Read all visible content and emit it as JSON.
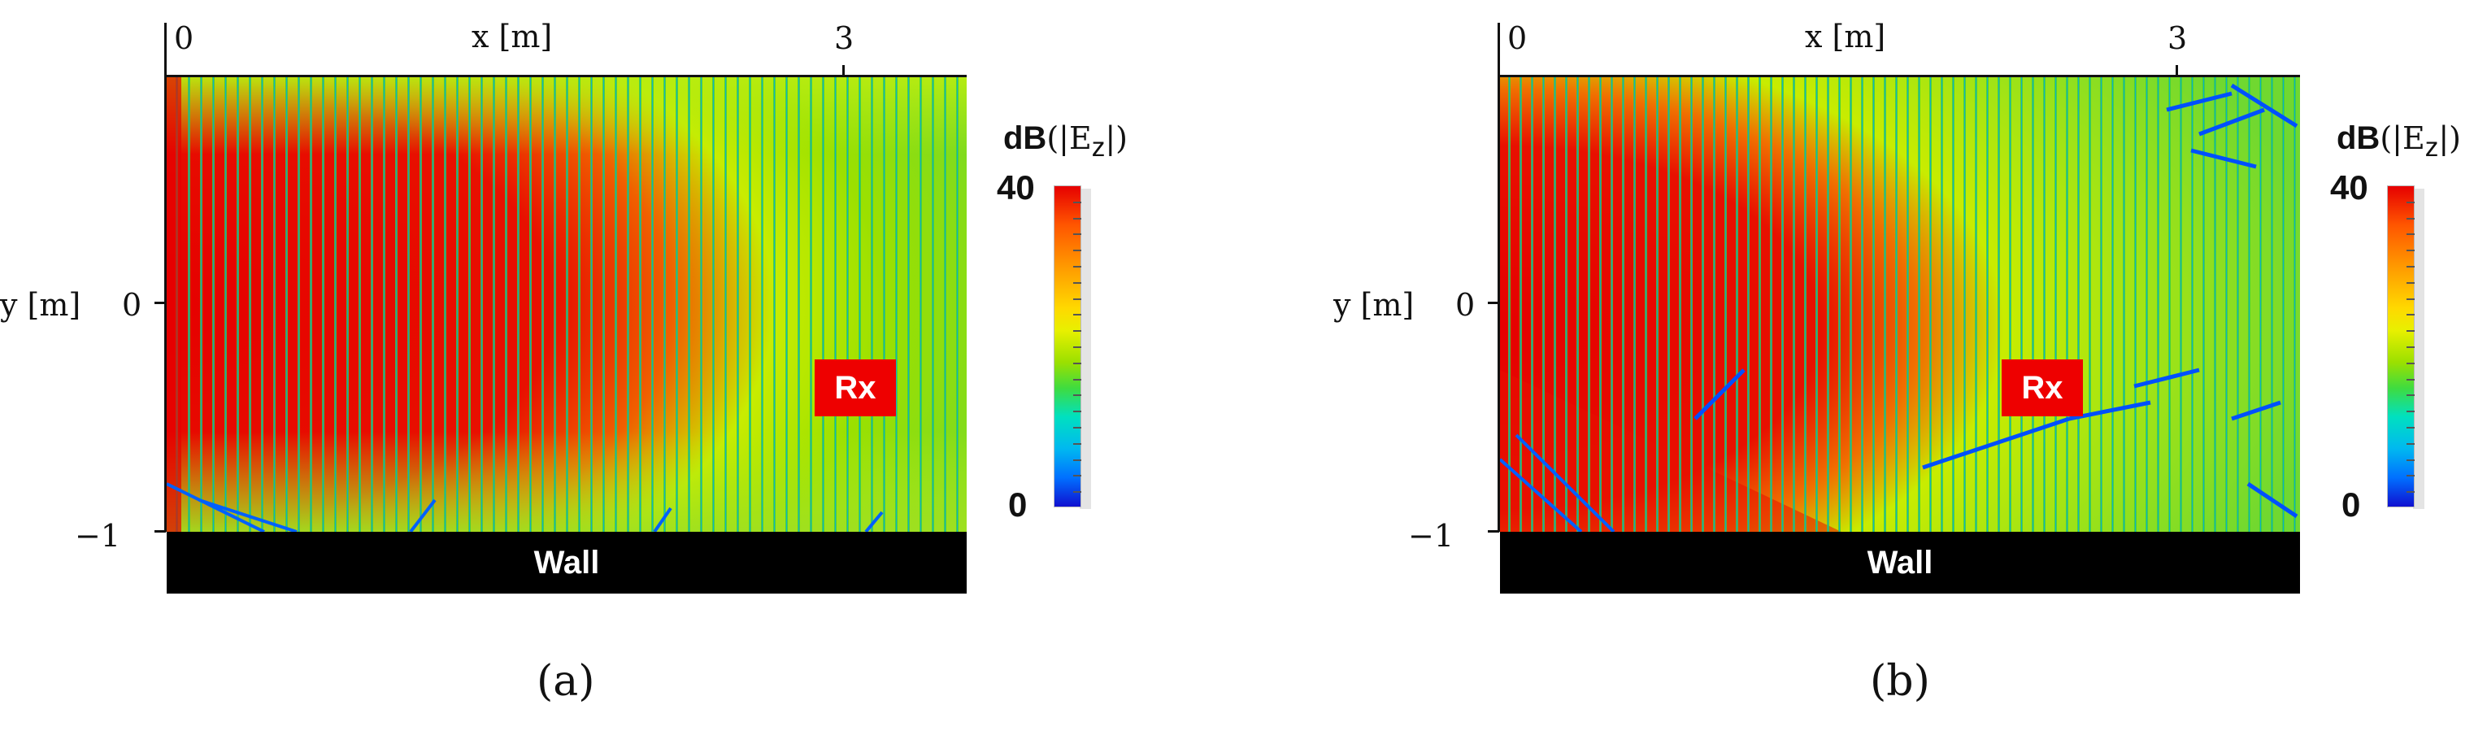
{
  "chart_data": [
    {
      "type": "heatmap",
      "panel_label": "(a)",
      "xlabel": "x [m]",
      "ylabel": "y [m]",
      "x_ticks": [
        "0",
        "3"
      ],
      "y_ticks": [
        "0",
        "−1"
      ],
      "wall_label": "Wall",
      "receiver_label": "Rx",
      "colorbar": {
        "title_prefix": "dB",
        "title_quantity": "(|E",
        "title_sub": "z",
        "title_suffix": "|)",
        "max": "40",
        "min": "0",
        "range": [
          0,
          40
        ]
      },
      "colormap": [
        "#0000c8",
        "#0070ff",
        "#00d0ff",
        "#00e0a0",
        "#40e040",
        "#c0f000",
        "#ffe000",
        "#ff8000",
        "#e60000"
      ]
    },
    {
      "type": "heatmap",
      "panel_label": "(b)",
      "xlabel": "x [m]",
      "ylabel": "y [m]",
      "x_ticks": [
        "0",
        "3"
      ],
      "y_ticks": [
        "0",
        "−1"
      ],
      "wall_label": "Wall",
      "receiver_label": "Rx",
      "colorbar": {
        "title_prefix": "dB",
        "title_quantity": "(|E",
        "title_sub": "z",
        "title_suffix": "|)",
        "max": "40",
        "min": "0",
        "range": [
          0,
          40
        ]
      },
      "colormap": [
        "#0000c8",
        "#0070ff",
        "#00d0ff",
        "#00e0a0",
        "#40e040",
        "#c0f000",
        "#ffe000",
        "#ff8000",
        "#e60000"
      ]
    }
  ]
}
